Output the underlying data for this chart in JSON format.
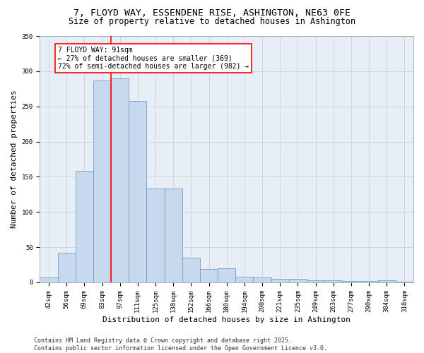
{
  "title_line1": "7, FLOYD WAY, ESSENDENE RISE, ASHINGTON, NE63 0FE",
  "title_line2": "Size of property relative to detached houses in Ashington",
  "xlabel": "Distribution of detached houses by size in Ashington",
  "ylabel": "Number of detached properties",
  "categories": [
    "42sqm",
    "56sqm",
    "69sqm",
    "83sqm",
    "97sqm",
    "111sqm",
    "125sqm",
    "138sqm",
    "152sqm",
    "166sqm",
    "180sqm",
    "194sqm",
    "208sqm",
    "221sqm",
    "235sqm",
    "249sqm",
    "263sqm",
    "277sqm",
    "290sqm",
    "304sqm",
    "318sqm"
  ],
  "values": [
    7,
    42,
    158,
    287,
    290,
    258,
    133,
    133,
    35,
    19,
    20,
    8,
    7,
    5,
    5,
    3,
    3,
    2,
    2,
    3,
    1
  ],
  "bar_color": "#c8d9ee",
  "bar_edge_color": "#6a9fd0",
  "vline_color": "red",
  "vline_x": 3.5,
  "annotation_text": "7 FLOYD WAY: 91sqm\n← 27% of detached houses are smaller (369)\n72% of semi-detached houses are larger (982) →",
  "annotation_box_color": "white",
  "annotation_box_edge": "red",
  "ylim": [
    0,
    350
  ],
  "yticks": [
    0,
    50,
    100,
    150,
    200,
    250,
    300,
    350
  ],
  "grid_color": "#c0ccd8",
  "bg_color": "#e8eef5",
  "footer_text": "Contains HM Land Registry data © Crown copyright and database right 2025.\nContains public sector information licensed under the Open Government Licence v3.0.",
  "title_fontsize": 9.5,
  "subtitle_fontsize": 8.5,
  "axis_label_fontsize": 8,
  "tick_fontsize": 6.5,
  "annotation_fontsize": 7,
  "footer_fontsize": 6
}
